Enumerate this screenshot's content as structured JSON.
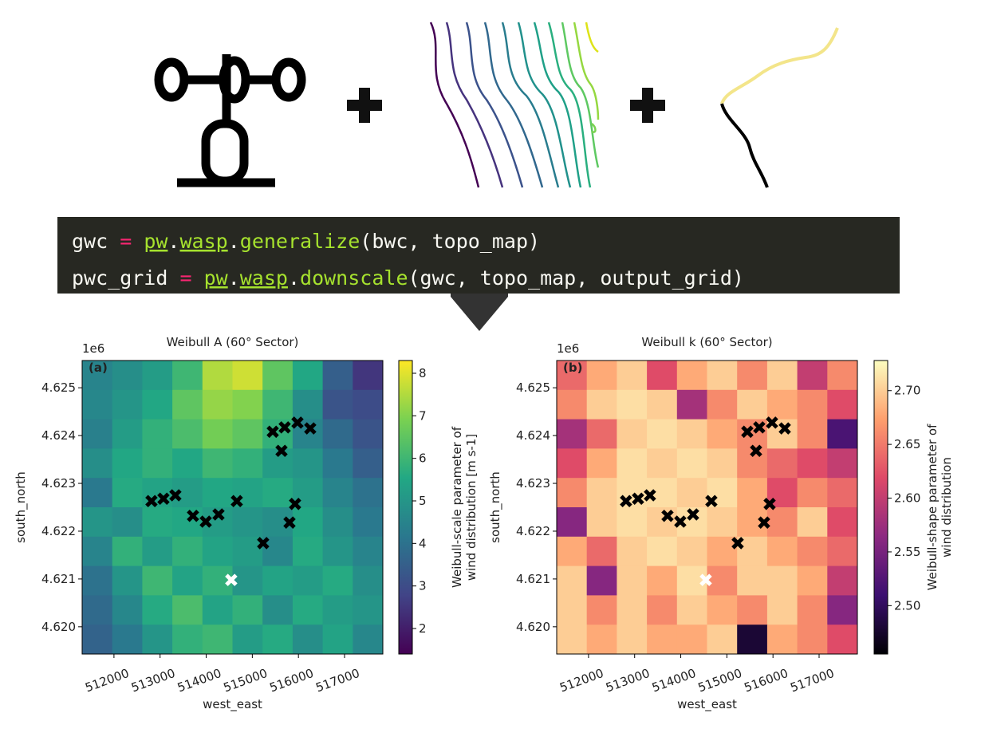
{
  "code": {
    "lines": [
      [
        {
          "text": "gwc",
          "color": "#f8f8f2"
        },
        {
          "text": " = ",
          "color": "#f92672"
        },
        {
          "text": "pw",
          "color": "#a6e22e",
          "underline": true
        },
        {
          "text": ".",
          "color": "#f8f8f2"
        },
        {
          "text": "wasp",
          "color": "#a6e22e",
          "underline": true
        },
        {
          "text": ".",
          "color": "#f8f8f2"
        },
        {
          "text": "generalize",
          "color": "#a6e22e"
        },
        {
          "text": "(bwc, topo_map)",
          "color": "#f8f8f2"
        }
      ],
      [
        {
          "text": "pwc_grid",
          "color": "#f8f8f2"
        },
        {
          "text": " = ",
          "color": "#f92672"
        },
        {
          "text": "pw",
          "color": "#a6e22e",
          "underline": true
        },
        {
          "text": ".",
          "color": "#f8f8f2"
        },
        {
          "text": "wasp",
          "color": "#a6e22e",
          "underline": true
        },
        {
          "text": ".",
          "color": "#f8f8f2"
        },
        {
          "text": "downscale",
          "color": "#a6e22e"
        },
        {
          "text": "(gwc, topo_map, output_grid)",
          "color": "#f8f8f2"
        }
      ]
    ]
  },
  "chart_data": [
    {
      "type": "heatmap",
      "title": "Weibull A (60° Sector)",
      "panel_label": "(a)",
      "xlabel": "west_east",
      "ylabel": "south_north",
      "y_offset_label": "1e6",
      "colormap": "viridis",
      "colorbar_label": [
        "Weibull-scale parameter of",
        "wind distribution [m s-1]"
      ],
      "clim": [
        1.4,
        8.3
      ],
      "cticks": [
        2,
        3,
        4,
        5,
        6,
        7,
        8
      ],
      "xlim": [
        511310,
        517830
      ],
      "xticks": [
        512000,
        513000,
        514000,
        515000,
        516000,
        517000
      ],
      "ylim": [
        4.61943,
        4.62557
      ],
      "yticks": [
        {
          "value": 4.62,
          "label": "4.620"
        },
        4.621,
        4.622,
        4.623,
        4.624,
        4.625
      ],
      "z": [
        [
          4.5,
          4.8,
          5.2,
          6.0,
          7.5,
          7.8,
          6.5,
          5.5,
          3.5,
          2.5
        ],
        [
          4.6,
          5.0,
          5.5,
          6.5,
          7.2,
          7.0,
          6.0,
          4.8,
          3.2,
          3.0
        ],
        [
          4.4,
          5.2,
          5.8,
          6.2,
          6.8,
          6.5,
          5.8,
          4.5,
          3.8,
          3.2
        ],
        [
          4.8,
          5.5,
          5.8,
          5.5,
          6.0,
          5.8,
          5.2,
          5.0,
          4.2,
          3.5
        ],
        [
          4.2,
          5.6,
          5.4,
          5.2,
          5.5,
          5.4,
          5.6,
          5.2,
          4.5,
          4.0
        ],
        [
          5.0,
          4.8,
          5.6,
          5.5,
          5.2,
          5.0,
          4.8,
          5.5,
          4.8,
          4.2
        ],
        [
          4.5,
          5.8,
          5.2,
          5.8,
          5.4,
          5.2,
          4.6,
          5.6,
          5.0,
          4.5
        ],
        [
          4.0,
          5.0,
          6.0,
          5.4,
          5.8,
          5.0,
          5.4,
          5.2,
          5.6,
          4.8
        ],
        [
          3.8,
          4.6,
          5.6,
          6.2,
          5.4,
          5.8,
          4.8,
          5.6,
          5.2,
          5.0
        ],
        [
          3.6,
          4.2,
          5.0,
          5.8,
          6.0,
          5.2,
          5.6,
          4.8,
          5.4,
          4.6
        ]
      ],
      "markers": {
        "color": "#000000",
        "x": [
          512813,
          513073,
          513332,
          513713,
          513990,
          514267,
          514664,
          515235,
          515443,
          515702,
          515979,
          516256,
          515633,
          515927,
          515806
        ],
        "y": [
          4.62263,
          4.62268,
          4.62275,
          4.62232,
          4.6222,
          4.62235,
          4.62263,
          4.62175,
          4.62408,
          4.62417,
          4.62427,
          4.62415,
          4.62368,
          4.62257,
          4.62218
        ]
      },
      "highlight": {
        "color": "#ffffff",
        "x": [
          514543
        ],
        "y": [
          4.62098
        ]
      }
    },
    {
      "type": "heatmap",
      "title": "Weibull k (60° Sector)",
      "panel_label": "(b)",
      "xlabel": "west_east",
      "ylabel": "south_north",
      "y_offset_label": "1e6",
      "colormap": "magma",
      "colorbar_label": [
        "Weibull-shape parameter of",
        "wind distribution"
      ],
      "clim": [
        2.455,
        2.728
      ],
      "cticks": [
        {
          "value": 2.5,
          "label": "2.50"
        },
        2.55,
        {
          "value": 2.6,
          "label": "2.60"
        },
        2.65,
        {
          "value": 2.7,
          "label": "2.70"
        }
      ],
      "xlim": [
        511310,
        517830
      ],
      "xticks": [
        512000,
        513000,
        514000,
        515000,
        516000,
        517000
      ],
      "ylim": [
        4.61943,
        4.62557
      ],
      "yticks": [
        {
          "value": 4.62,
          "label": "4.620"
        },
        4.621,
        4.622,
        4.623,
        4.624,
        4.625
      ],
      "z": [
        [
          2.64,
          2.68,
          2.7,
          2.62,
          2.68,
          2.7,
          2.66,
          2.7,
          2.6,
          2.66
        ],
        [
          2.66,
          2.7,
          2.71,
          2.7,
          2.58,
          2.66,
          2.7,
          2.68,
          2.66,
          2.62
        ],
        [
          2.58,
          2.64,
          2.7,
          2.71,
          2.7,
          2.68,
          2.66,
          2.7,
          2.66,
          2.52
        ],
        [
          2.62,
          2.68,
          2.71,
          2.7,
          2.71,
          2.7,
          2.66,
          2.64,
          2.62,
          2.6
        ],
        [
          2.66,
          2.7,
          2.71,
          2.71,
          2.7,
          2.71,
          2.68,
          2.62,
          2.66,
          2.64
        ],
        [
          2.56,
          2.7,
          2.71,
          2.7,
          2.71,
          2.7,
          2.68,
          2.66,
          2.7,
          2.62
        ],
        [
          2.68,
          2.64,
          2.7,
          2.71,
          2.7,
          2.68,
          2.7,
          2.68,
          2.66,
          2.64
        ],
        [
          2.7,
          2.56,
          2.7,
          2.68,
          2.71,
          2.66,
          2.7,
          2.7,
          2.68,
          2.6
        ],
        [
          2.7,
          2.66,
          2.7,
          2.66,
          2.7,
          2.68,
          2.66,
          2.7,
          2.66,
          2.56
        ],
        [
          2.7,
          2.68,
          2.7,
          2.68,
          2.68,
          2.7,
          2.48,
          2.68,
          2.66,
          2.62
        ]
      ],
      "markers": {
        "color": "#000000",
        "x": [
          512813,
          513073,
          513332,
          513713,
          513990,
          514267,
          514664,
          515235,
          515443,
          515702,
          515979,
          516256,
          515633,
          515927,
          515806
        ],
        "y": [
          4.62263,
          4.62268,
          4.62275,
          4.62232,
          4.6222,
          4.62235,
          4.62263,
          4.62175,
          4.62408,
          4.62417,
          4.62427,
          4.62415,
          4.62368,
          4.62257,
          4.62218
        ]
      },
      "highlight": {
        "color": "#ffffff",
        "x": [
          514543
        ],
        "y": [
          4.62098
        ]
      }
    }
  ]
}
